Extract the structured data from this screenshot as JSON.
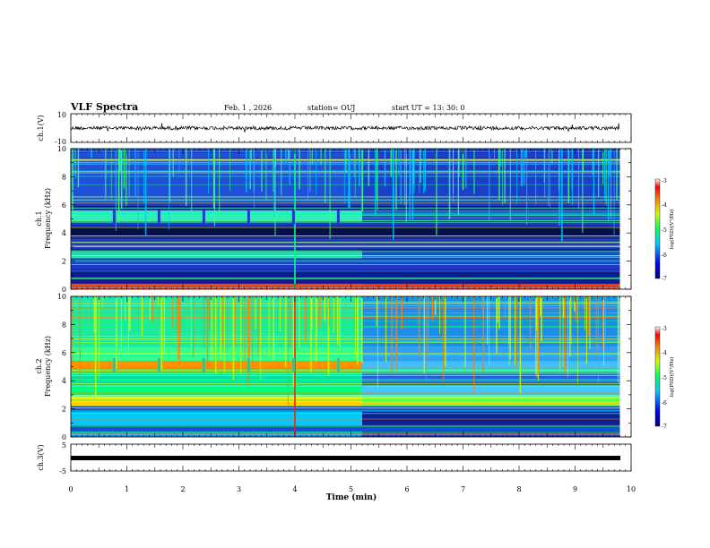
{
  "header": {
    "title": "VLF Spectra",
    "date": "Feb. 1  , 2026",
    "station": "station= OUJ",
    "start": "start  UT  =   13: 30: 0"
  },
  "chart_data": {
    "type": "heatmap",
    "x_axis": {
      "label": "Time  (min)",
      "range": [
        0,
        10
      ],
      "ticks": [
        "0",
        "1",
        "2",
        "3",
        "4",
        "5",
        "6",
        "7",
        "8",
        "9",
        "10"
      ]
    },
    "panels": [
      {
        "name": "ch.1 waveform",
        "type": "line",
        "ylabel": "ch.1(V)",
        "ylim": [
          -10,
          10
        ],
        "ticks": [
          "10",
          "-10"
        ]
      },
      {
        "name": "ch.1 spectrogram",
        "type": "heatmap",
        "ylabel": "ch.1",
        "ylabel2": "Frequency  (kHz)",
        "ylim": [
          0,
          10
        ],
        "ticks": [
          "0",
          "2",
          "4",
          "6",
          "8",
          "10"
        ],
        "colorbar": {
          "label": "log(PSD)(V²/Hz)",
          "range": [
            -7,
            -3
          ],
          "ticks": [
            "-3",
            "-4",
            "-5",
            "-6",
            "-7"
          ]
        }
      },
      {
        "name": "ch.2 spectrogram",
        "type": "heatmap",
        "ylabel": "ch.2",
        "ylabel2": "Frequency  (kHz)",
        "ylim": [
          0,
          10
        ],
        "ticks": [
          "0",
          "2",
          "4",
          "6",
          "8",
          "10"
        ],
        "colorbar": {
          "label": "log(PSD)(V²/Hz)",
          "range": [
            -7,
            -3
          ],
          "ticks": [
            "-3",
            "-4",
            "-5",
            "-6",
            "-7"
          ]
        }
      },
      {
        "name": "ch.3 waveform",
        "type": "line",
        "ylabel": "ch.3(V)",
        "ylim": [
          -5,
          5
        ],
        "ticks": [
          "5",
          "-5"
        ]
      }
    ],
    "data_end_min": 9.8,
    "regime_change_min": 5.2
  }
}
